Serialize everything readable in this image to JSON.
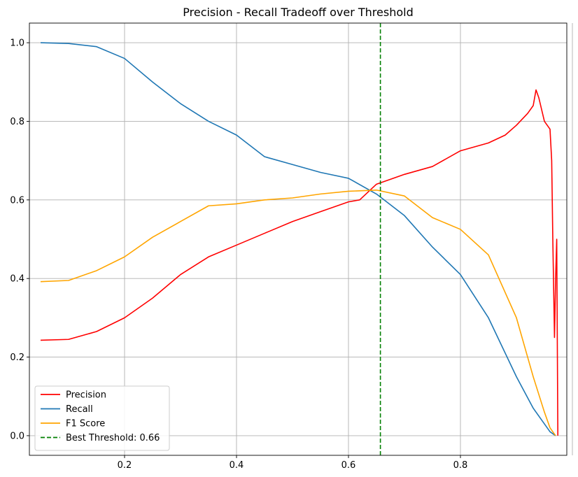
{
  "chart_data": {
    "type": "line",
    "title": "Precision - Recall Tradeoff over Threshold",
    "xlabel": "",
    "ylabel": "",
    "xlim": [
      0.03,
      0.99
    ],
    "ylim": [
      -0.05,
      1.05
    ],
    "xticks": [
      0.2,
      0.4,
      0.6,
      0.8,
      1.0
    ],
    "xtick_labels": [
      "0.2",
      "0.4",
      "0.6",
      "0.8",
      "1.0"
    ],
    "yticks": [
      0.0,
      0.2,
      0.4,
      0.6,
      0.8,
      1.0
    ],
    "ytick_labels": [
      "0.0",
      "0.2",
      "0.4",
      "0.6",
      "0.8",
      "1.0"
    ],
    "grid": true,
    "legend_position": "lower-left",
    "series": [
      {
        "name": "Precision",
        "color": "#ff0000",
        "x": [
          0.05,
          0.1,
          0.15,
          0.2,
          0.25,
          0.3,
          0.35,
          0.4,
          0.45,
          0.5,
          0.55,
          0.6,
          0.62,
          0.65,
          0.7,
          0.75,
          0.8,
          0.85,
          0.88,
          0.9,
          0.92,
          0.93,
          0.935,
          0.94,
          0.95,
          0.96,
          0.963,
          0.965,
          0.968,
          0.97,
          0.972,
          0.974
        ],
        "y": [
          0.243,
          0.245,
          0.265,
          0.3,
          0.35,
          0.41,
          0.455,
          0.485,
          0.515,
          0.545,
          0.57,
          0.595,
          0.6,
          0.64,
          0.665,
          0.685,
          0.725,
          0.745,
          0.765,
          0.79,
          0.82,
          0.84,
          0.88,
          0.86,
          0.8,
          0.78,
          0.7,
          0.5,
          0.25,
          0.4,
          0.5,
          0.0
        ]
      },
      {
        "name": "Recall",
        "color": "#1f77b4",
        "x": [
          0.05,
          0.1,
          0.15,
          0.2,
          0.25,
          0.3,
          0.35,
          0.4,
          0.45,
          0.5,
          0.55,
          0.6,
          0.65,
          0.7,
          0.75,
          0.8,
          0.85,
          0.9,
          0.93,
          0.95,
          0.96,
          0.97
        ],
        "y": [
          1.0,
          0.998,
          0.99,
          0.96,
          0.9,
          0.845,
          0.8,
          0.765,
          0.71,
          0.69,
          0.67,
          0.655,
          0.615,
          0.56,
          0.48,
          0.41,
          0.3,
          0.15,
          0.07,
          0.03,
          0.01,
          0.0
        ]
      },
      {
        "name": "F1 Score",
        "color": "#ffa500",
        "x": [
          0.05,
          0.1,
          0.15,
          0.2,
          0.25,
          0.3,
          0.35,
          0.4,
          0.45,
          0.5,
          0.55,
          0.6,
          0.65,
          0.7,
          0.75,
          0.8,
          0.85,
          0.9,
          0.93,
          0.95,
          0.96,
          0.97
        ],
        "y": [
          0.392,
          0.395,
          0.42,
          0.455,
          0.505,
          0.545,
          0.585,
          0.59,
          0.6,
          0.605,
          0.615,
          0.622,
          0.625,
          0.61,
          0.555,
          0.525,
          0.46,
          0.3,
          0.15,
          0.06,
          0.02,
          0.0
        ]
      }
    ],
    "vertical_lines": [
      {
        "name": "Best Threshold: 0.66",
        "x": 0.657,
        "color": "#008000",
        "style": "dashed"
      }
    ]
  }
}
